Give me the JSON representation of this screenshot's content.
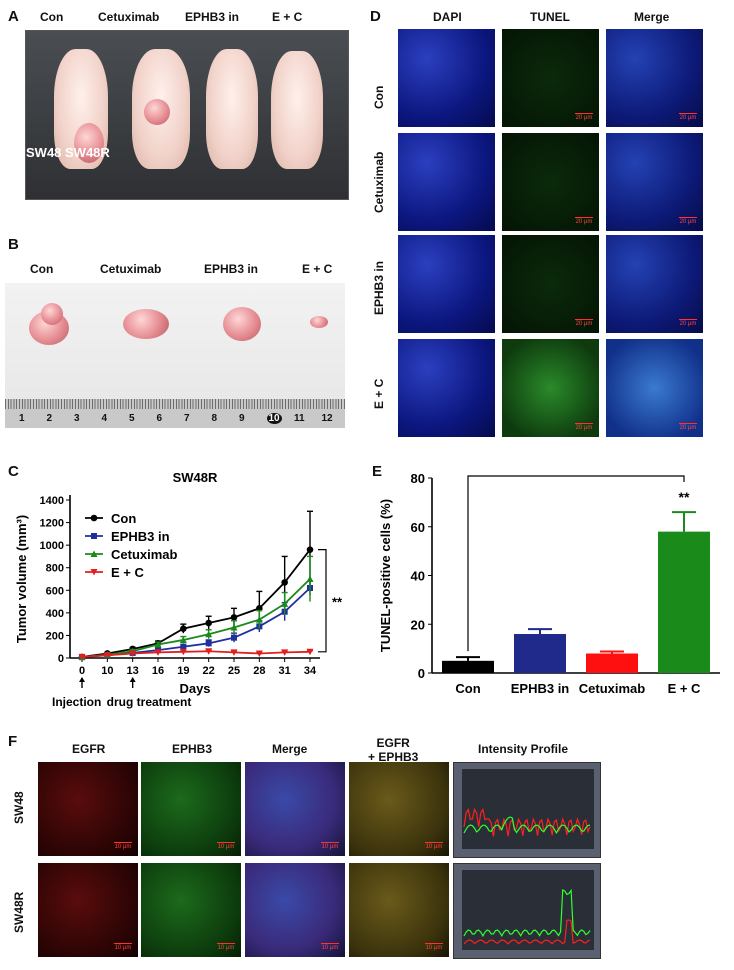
{
  "panelA": {
    "label": "A",
    "groups": [
      "Con",
      "Cetuximab",
      "EPHB3 in",
      "E + C"
    ],
    "overlay": "SW48 SW48R"
  },
  "panelB": {
    "label": "B",
    "groups": [
      "Con",
      "Cetuximab",
      "EPHB3 in",
      "E + C"
    ],
    "ruler": [
      "1",
      "2",
      "3",
      "4",
      "5",
      "6",
      "7",
      "8",
      "9",
      "10",
      "11",
      "12"
    ]
  },
  "panelC": {
    "label": "C",
    "title": "SW48R",
    "ylabel": "Tumor volume (mm³)",
    "xlabel": "Days",
    "sig": "**",
    "annot1": "Injection",
    "annot2": "drug treatment",
    "chart_data": {
      "type": "line",
      "title": "SW48R",
      "xlabel": "Days",
      "ylabel": "Tumor volume (mm3)",
      "x": [
        0,
        10,
        13,
        16,
        19,
        22,
        25,
        28,
        31,
        34
      ],
      "ylim": [
        0,
        1400
      ],
      "yticks": [
        0,
        200,
        400,
        600,
        800,
        1000,
        1200,
        1400
      ],
      "series": [
        {
          "name": "Con",
          "color": "#000000",
          "marker": "circle",
          "values": [
            10,
            40,
            80,
            130,
            260,
            310,
            360,
            440,
            670,
            960
          ],
          "err": [
            5,
            10,
            15,
            20,
            40,
            60,
            80,
            150,
            230,
            340
          ]
        },
        {
          "name": "EPHB3 in",
          "color": "#1f2f9e",
          "marker": "square",
          "values": [
            8,
            25,
            45,
            70,
            100,
            130,
            180,
            280,
            410,
            620
          ],
          "err": [
            4,
            8,
            10,
            15,
            20,
            30,
            40,
            50,
            80,
            60
          ]
        },
        {
          "name": "Cetuximab",
          "color": "#1a8a1a",
          "marker": "triangle-up",
          "values": [
            8,
            30,
            60,
            120,
            160,
            210,
            270,
            340,
            480,
            700
          ],
          "err": [
            4,
            8,
            15,
            20,
            30,
            40,
            60,
            80,
            100,
            200
          ]
        },
        {
          "name": "E + C",
          "color": "#e02020",
          "marker": "triangle-down",
          "values": [
            10,
            25,
            40,
            50,
            55,
            60,
            50,
            40,
            50,
            55
          ],
          "err": [
            4,
            6,
            8,
            10,
            10,
            10,
            10,
            8,
            10,
            10
          ]
        }
      ]
    }
  },
  "panelD": {
    "label": "D",
    "cols": [
      "DAPI",
      "TUNEL",
      "Merge"
    ],
    "rows": [
      "Con",
      "Cetuximab",
      "EPHB3  in",
      "E + C"
    ],
    "scale": "20 μm"
  },
  "panelE": {
    "label": "E",
    "sig": "**",
    "chart_data": {
      "type": "bar",
      "categories": [
        "Con",
        "EPHB3 in",
        "Cetuximab",
        "E + C"
      ],
      "values": [
        5,
        16,
        8,
        58
      ],
      "err": [
        1.5,
        2,
        0.8,
        8
      ],
      "colors": [
        "#000000",
        "#1f2a8a",
        "#ff1010",
        "#1a8a1a"
      ],
      "ylabel": "TUNEL-positive cells (%)",
      "ylim": [
        0,
        80
      ],
      "yticks": [
        0,
        20,
        40,
        60,
        80
      ]
    }
  },
  "panelF": {
    "label": "F",
    "cols": [
      "EGFR",
      "EPHB3",
      "Merge",
      "EGFR\n+ EPHB3",
      "Intensity Profile"
    ],
    "rows": [
      "SW48",
      "SW48R"
    ],
    "scale": "10 μm"
  }
}
